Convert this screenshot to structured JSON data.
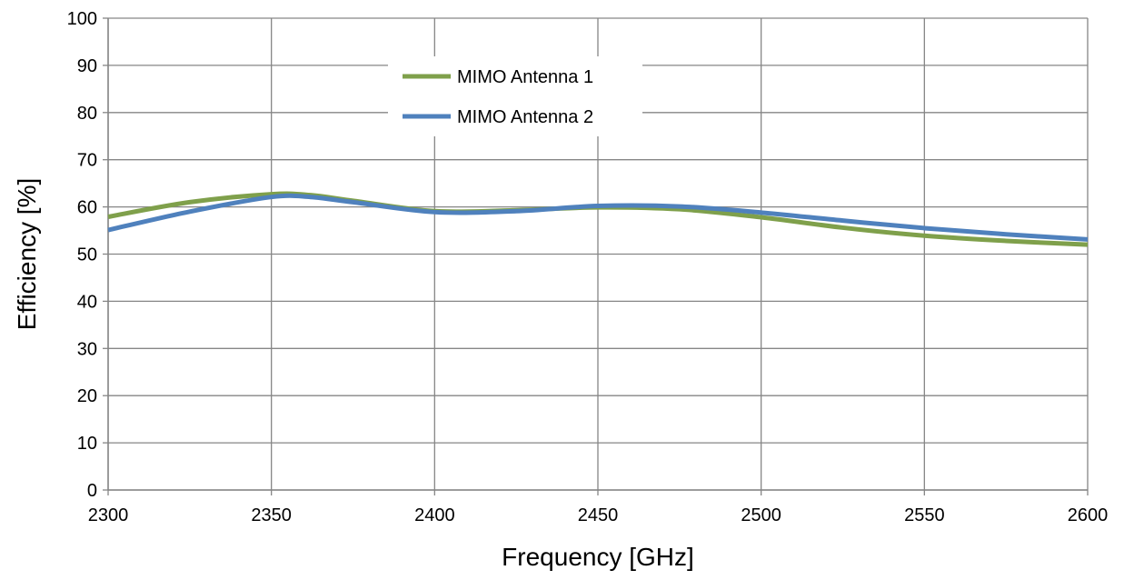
{
  "chart_data": {
    "type": "line",
    "title": "",
    "xlabel": "Frequency [GHz]",
    "ylabel": "Efficiency [%]",
    "xlim": [
      2300,
      2600
    ],
    "ylim": [
      0,
      100
    ],
    "xticks": [
      2300,
      2350,
      2400,
      2450,
      2500,
      2550,
      2600
    ],
    "yticks": [
      0,
      10,
      20,
      30,
      40,
      50,
      60,
      70,
      80,
      90,
      100
    ],
    "grid": true,
    "legend_position": "top-center",
    "x": [
      2300,
      2325,
      2350,
      2362,
      2375,
      2400,
      2425,
      2450,
      2475,
      2500,
      2525,
      2550,
      2575,
      2600
    ],
    "series": [
      {
        "name": "MIMO Antenna 1",
        "color": "#7fa04b",
        "values": [
          57.9,
          61.0,
          62.7,
          62.5,
          61.3,
          59.1,
          59.3,
          59.9,
          59.5,
          57.8,
          55.6,
          53.9,
          52.8,
          52.0
        ]
      },
      {
        "name": "MIMO Antenna 2",
        "color": "#4f81bd",
        "values": [
          55.1,
          59.0,
          62.1,
          62.1,
          61.0,
          58.9,
          59.1,
          60.2,
          60.1,
          58.8,
          57.1,
          55.5,
          54.2,
          53.1
        ]
      }
    ]
  }
}
